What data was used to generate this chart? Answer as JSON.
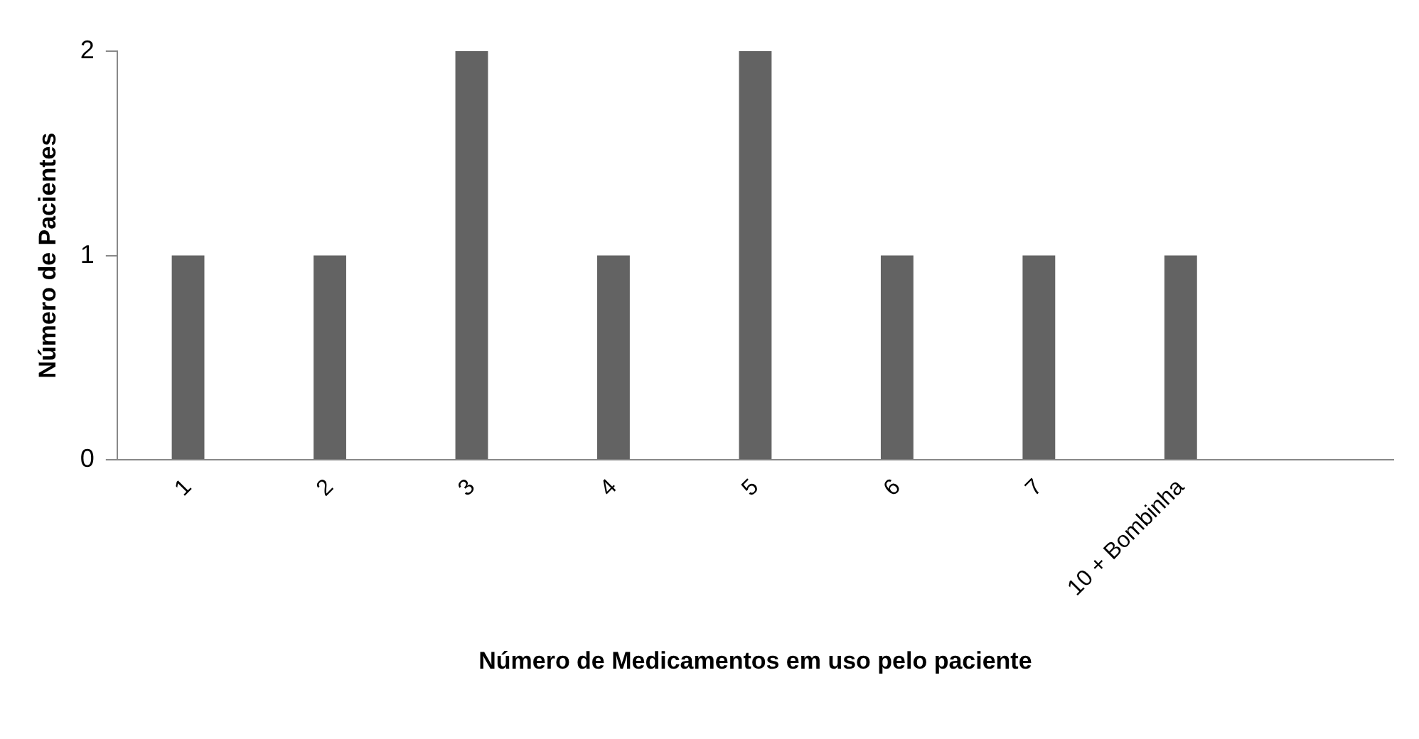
{
  "chart_data": {
    "type": "bar",
    "xlabel": "Número de Medicamentos em uso pelo paciente",
    "ylabel": "Número de Pacientes",
    "categories": [
      "1",
      "2",
      "3",
      "4",
      "5",
      "6",
      "7",
      "10 + Bombinha",
      null
    ],
    "values": [
      1,
      1,
      2,
      1,
      2,
      1,
      1,
      1,
      null
    ],
    "color": "#636363",
    "ylim": [
      0,
      2
    ],
    "yticks": [
      0,
      1,
      2
    ]
  }
}
